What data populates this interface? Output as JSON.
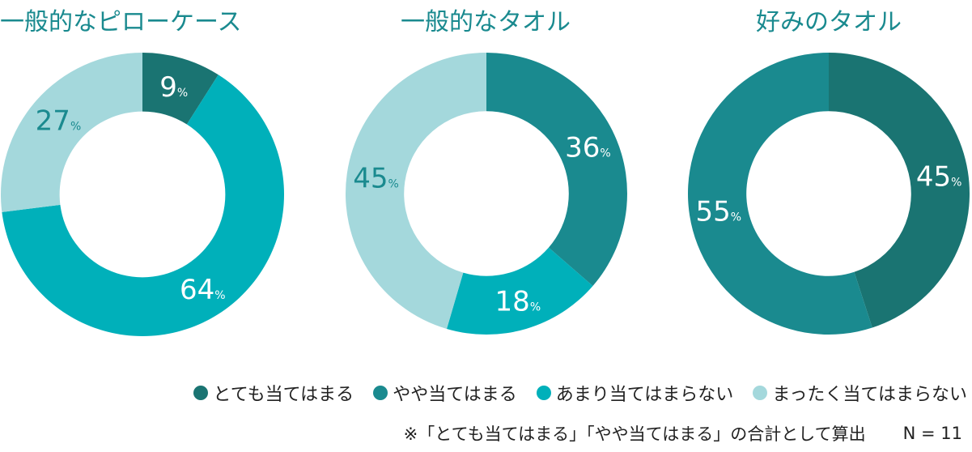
{
  "chart_data": [
    {
      "type": "pie",
      "title": "一般的なピローケース",
      "series": [
        {
          "name": "とても当てはまる",
          "value": 9,
          "label": "9",
          "color": "#1a7472"
        },
        {
          "name": "やや当てはまる",
          "value": 0,
          "label": "",
          "color": "#1a8a8f"
        },
        {
          "name": "あまり当てはまらない",
          "value": 64,
          "label": "64",
          "color": "#00b0ba"
        },
        {
          "name": "まったく当てはまらない",
          "value": 27,
          "label": "27",
          "color": "#a4d8dc"
        }
      ]
    },
    {
      "type": "pie",
      "title": "一般的なタオル",
      "series": [
        {
          "name": "とても当てはまる",
          "value": 0,
          "label": "",
          "color": "#1a7472"
        },
        {
          "name": "やや当てはまる",
          "value": 36,
          "label": "36",
          "color": "#1a8a8f"
        },
        {
          "name": "あまり当てはまらない",
          "value": 18,
          "label": "18",
          "color": "#00b0ba"
        },
        {
          "name": "まったく当てはまらない",
          "value": 45,
          "label": "45",
          "color": "#a4d8dc"
        }
      ]
    },
    {
      "type": "pie",
      "title": "好みのタオル",
      "series": [
        {
          "name": "とても当てはまる",
          "value": 45,
          "label": "45",
          "color": "#1a7472"
        },
        {
          "name": "やや当てはまる",
          "value": 55,
          "label": "55",
          "color": "#1a8a8f"
        },
        {
          "name": "あまり当てはまらない",
          "value": 0,
          "label": "",
          "color": "#00b0ba"
        },
        {
          "name": "まったく当てはまらない",
          "value": 0,
          "label": "",
          "color": "#a4d8dc"
        }
      ]
    }
  ],
  "percent_sign": "%",
  "legend": [
    {
      "label": "とても当てはまる",
      "color": "#1a7472"
    },
    {
      "label": "やや当てはまる",
      "color": "#1a8a8f"
    },
    {
      "label": "あまり当てはまらない",
      "color": "#00b0ba"
    },
    {
      "label": "まったく当てはまらない",
      "color": "#a4d8dc"
    }
  ],
  "footnote": "※「とても当てはまる」「やや当てはまる」の合計として算出",
  "sample_size": "N = 11"
}
